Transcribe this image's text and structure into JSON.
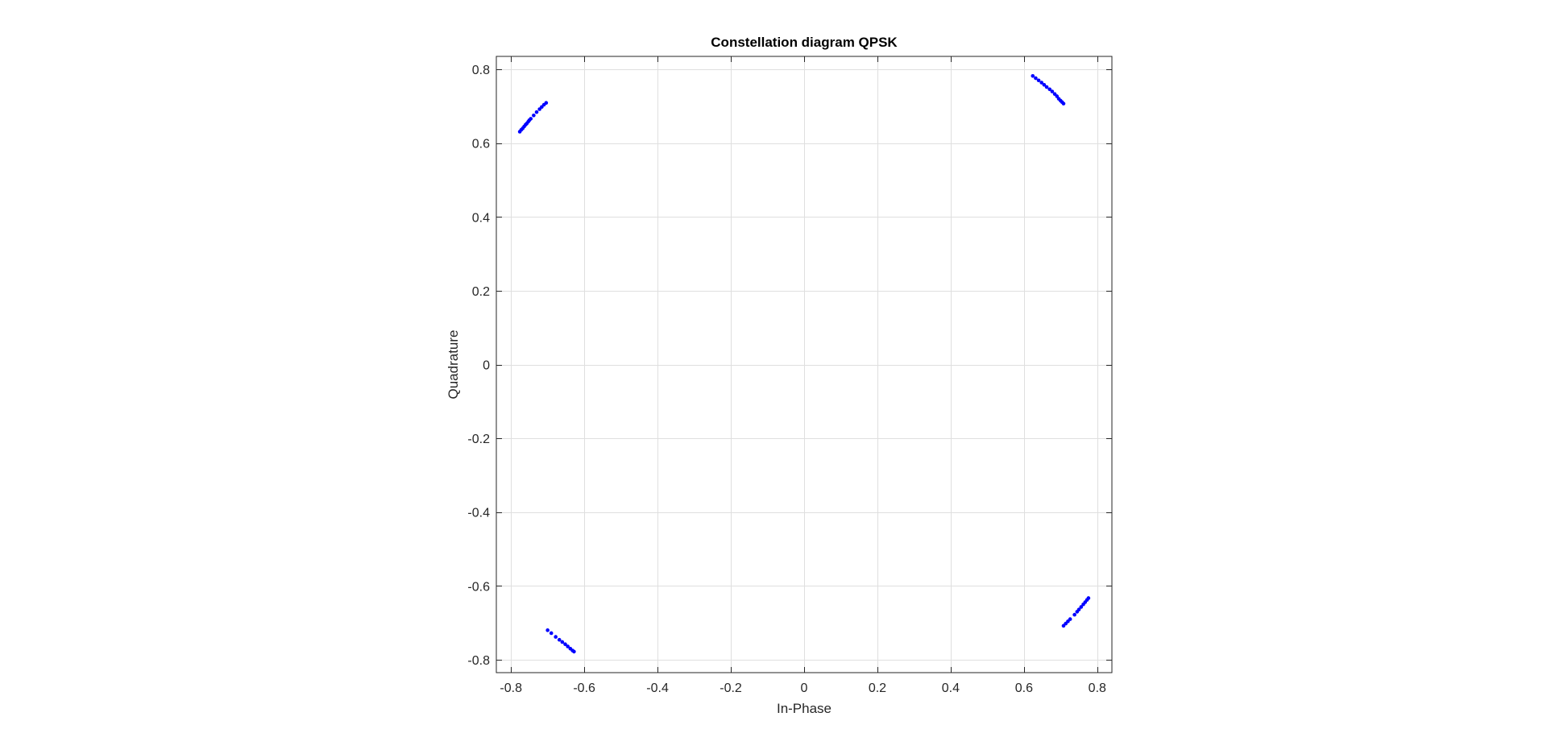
{
  "chart_data": {
    "type": "scatter",
    "title": "Constellation diagram QPSK",
    "xlabel": "In-Phase",
    "ylabel": "Quadrature",
    "xlim": [
      -0.84,
      0.84
    ],
    "ylim": [
      -0.835,
      0.835
    ],
    "grid": true,
    "box": true,
    "marker_color": "#0000ff",
    "grid_color": "#dfdfdf",
    "axis_color": "#262626",
    "xticks": [
      -0.8,
      -0.6,
      -0.4,
      -0.2,
      0,
      0.2,
      0.4,
      0.6,
      0.8
    ],
    "yticks": [
      -0.8,
      -0.6,
      -0.4,
      -0.2,
      0,
      0.2,
      0.4,
      0.6,
      0.8
    ],
    "xtick_labels": [
      "-0.8",
      "-0.6",
      "-0.4",
      "-0.2",
      "0",
      "0.2",
      "0.4",
      "0.6",
      "0.8"
    ],
    "ytick_labels": [
      "-0.8",
      "-0.6",
      "-0.4",
      "-0.2",
      "0",
      "0.2",
      "0.4",
      "0.6",
      "0.8"
    ],
    "series": [
      {
        "points": [
          [
            -0.776,
            0.631
          ],
          [
            -0.772,
            0.636
          ],
          [
            -0.768,
            0.64
          ],
          [
            -0.764,
            0.645
          ],
          [
            -0.76,
            0.65
          ],
          [
            -0.757,
            0.653
          ],
          [
            -0.753,
            0.658
          ],
          [
            -0.75,
            0.662
          ],
          [
            -0.746,
            0.666
          ],
          [
            -0.738,
            0.675
          ],
          [
            -0.73,
            0.684
          ],
          [
            -0.722,
            0.692
          ],
          [
            -0.716,
            0.698
          ],
          [
            -0.71,
            0.704
          ],
          [
            -0.704,
            0.709
          ],
          [
            0.624,
            0.782
          ],
          [
            0.632,
            0.776
          ],
          [
            0.64,
            0.77
          ],
          [
            0.648,
            0.764
          ],
          [
            0.655,
            0.758
          ],
          [
            0.662,
            0.752
          ],
          [
            0.67,
            0.746
          ],
          [
            0.677,
            0.74
          ],
          [
            0.684,
            0.733
          ],
          [
            0.69,
            0.727
          ],
          [
            0.695,
            0.72
          ],
          [
            0.7,
            0.715
          ],
          [
            0.704,
            0.711
          ],
          [
            0.708,
            0.707
          ],
          [
            -0.7,
            -0.72
          ],
          [
            -0.69,
            -0.728
          ],
          [
            -0.678,
            -0.738
          ],
          [
            -0.668,
            -0.746
          ],
          [
            -0.66,
            -0.752
          ],
          [
            -0.652,
            -0.758
          ],
          [
            -0.645,
            -0.764
          ],
          [
            -0.638,
            -0.77
          ],
          [
            -0.632,
            -0.775
          ],
          [
            -0.628,
            -0.778
          ],
          [
            0.708,
            -0.708
          ],
          [
            0.714,
            -0.702
          ],
          [
            0.72,
            -0.696
          ],
          [
            0.726,
            -0.69
          ],
          [
            0.738,
            -0.678
          ],
          [
            0.745,
            -0.67
          ],
          [
            0.75,
            -0.664
          ],
          [
            0.756,
            -0.657
          ],
          [
            0.762,
            -0.65
          ],
          [
            0.767,
            -0.644
          ],
          [
            0.772,
            -0.638
          ],
          [
            0.776,
            -0.633
          ]
        ]
      }
    ]
  }
}
